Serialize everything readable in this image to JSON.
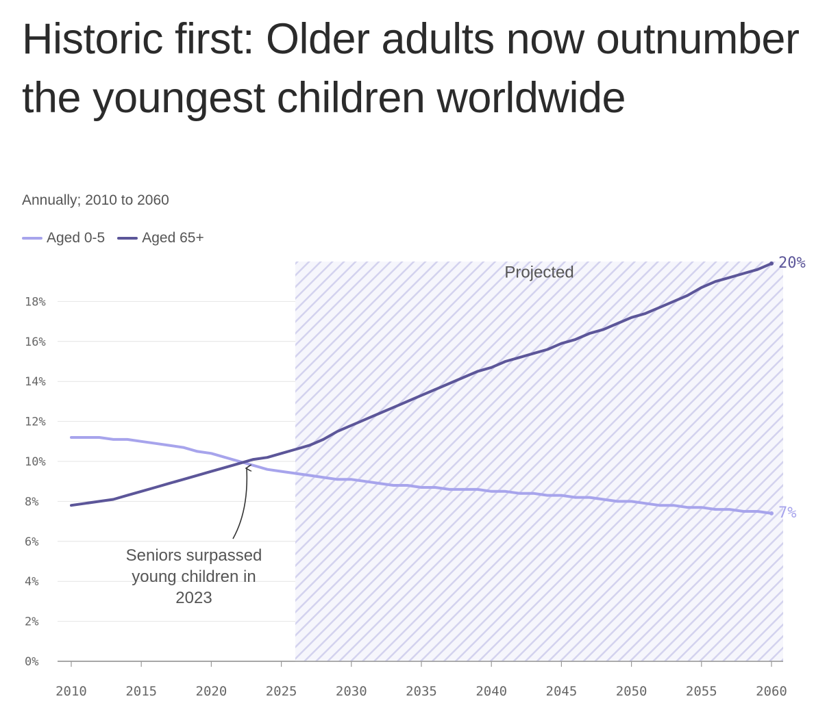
{
  "header": {
    "title": "Historic first: Older adults now outnumber the youngest children worldwide",
    "subtitle": "Annually; 2010 to 2060"
  },
  "legend": {
    "items": [
      {
        "label": "Aged 0-5",
        "color": "#a7a4ec"
      },
      {
        "label": "Aged 65+",
        "color": "#5c5699"
      }
    ]
  },
  "chart_data": {
    "type": "line",
    "title": "Historic first: Older adults now outnumber the youngest children worldwide",
    "subtitle": "Annually; 2010 to 2060",
    "xlabel": "",
    "ylabel": "",
    "xlim": [
      2010,
      2060
    ],
    "ylim": [
      0,
      20
    ],
    "x_ticks": [
      "2010",
      "2015",
      "2020",
      "2025",
      "2030",
      "2035",
      "2040",
      "2045",
      "2050",
      "2055",
      "2060"
    ],
    "y_ticks": [
      "0%",
      "2%",
      "4%",
      "6%",
      "8%",
      "10%",
      "12%",
      "14%",
      "16%",
      "18%"
    ],
    "grid": true,
    "legend_position": "top-left",
    "projected_region": {
      "label": "Projected",
      "start": 2026,
      "end": 2060
    },
    "annotation": {
      "text_lines": [
        "Seniors surpassed",
        "young children in",
        "2023"
      ],
      "year": 2023
    },
    "x": [
      2010,
      2011,
      2012,
      2013,
      2014,
      2015,
      2016,
      2017,
      2018,
      2019,
      2020,
      2021,
      2022,
      2023,
      2024,
      2025,
      2026,
      2027,
      2028,
      2029,
      2030,
      2031,
      2032,
      2033,
      2034,
      2035,
      2036,
      2037,
      2038,
      2039,
      2040,
      2041,
      2042,
      2043,
      2044,
      2045,
      2046,
      2047,
      2048,
      2049,
      2050,
      2051,
      2052,
      2053,
      2054,
      2055,
      2056,
      2057,
      2058,
      2059,
      2060
    ],
    "series": [
      {
        "name": "Aged 0-5",
        "color": "#a7a4ec",
        "end_label": "7%",
        "values": [
          11.2,
          11.2,
          11.2,
          11.1,
          11.1,
          11.0,
          10.9,
          10.8,
          10.7,
          10.5,
          10.4,
          10.2,
          10.0,
          9.8,
          9.6,
          9.5,
          9.4,
          9.3,
          9.2,
          9.1,
          9.1,
          9.0,
          8.9,
          8.8,
          8.8,
          8.7,
          8.7,
          8.6,
          8.6,
          8.6,
          8.5,
          8.5,
          8.4,
          8.4,
          8.3,
          8.3,
          8.2,
          8.2,
          8.1,
          8.0,
          8.0,
          7.9,
          7.8,
          7.8,
          7.7,
          7.7,
          7.6,
          7.6,
          7.5,
          7.5,
          7.4
        ]
      },
      {
        "name": "Aged 65+",
        "color": "#5c5699",
        "end_label": "20%",
        "values": [
          7.8,
          7.9,
          8.0,
          8.1,
          8.3,
          8.5,
          8.7,
          8.9,
          9.1,
          9.3,
          9.5,
          9.7,
          9.9,
          10.1,
          10.2,
          10.4,
          10.6,
          10.8,
          11.1,
          11.5,
          11.8,
          12.1,
          12.4,
          12.7,
          13.0,
          13.3,
          13.6,
          13.9,
          14.2,
          14.5,
          14.7,
          15.0,
          15.2,
          15.4,
          15.6,
          15.9,
          16.1,
          16.4,
          16.6,
          16.9,
          17.2,
          17.4,
          17.7,
          18.0,
          18.3,
          18.7,
          19.0,
          19.2,
          19.4,
          19.6,
          19.9
        ]
      }
    ]
  }
}
